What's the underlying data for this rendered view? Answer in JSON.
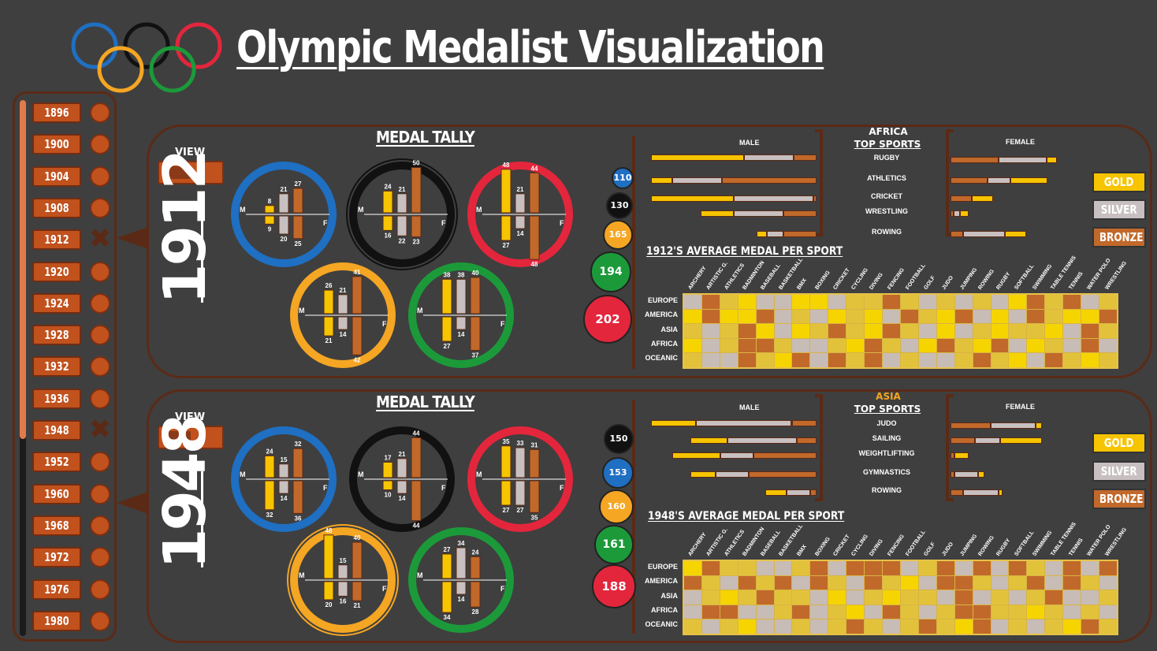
{
  "title": "Olympic Medalist Visualization",
  "colors": {
    "gold": "#f6c400",
    "silver": "#c8c0c0",
    "bronze": "#c1692b",
    "blue": "#1f6fc2",
    "black": "#111111",
    "red": "#e3263c",
    "yellow": "#f5a623",
    "green": "#1c9a3a",
    "accent": "#c1511d"
  },
  "timeline": {
    "years": [
      "1896",
      "1900",
      "1904",
      "1908",
      "1912",
      "1920",
      "1924",
      "1928",
      "1932",
      "1936",
      "1948",
      "1952",
      "1960",
      "1968",
      "1972",
      "1976",
      "1980"
    ],
    "selected": [
      "1912",
      "1948"
    ]
  },
  "legend_buttons": {
    "gold": "GOLD",
    "silver": "SILVER",
    "bronze": "BRONZE"
  },
  "panels": [
    {
      "year": "1912",
      "view_label": "VIEW",
      "tally_title": "MEDAL TALLY",
      "rings": [
        {
          "ring": "blue",
          "male_label": "M",
          "female_label": "F",
          "top": [
            "8",
            "21",
            "27"
          ],
          "bottom": [
            "9",
            "20",
            "25"
          ]
        },
        {
          "ring": "black",
          "male_label": "M",
          "female_label": "F",
          "top": [
            "24",
            "21",
            "50"
          ],
          "bottom": [
            "16",
            "22",
            "23"
          ]
        },
        {
          "ring": "red",
          "male_label": "M",
          "female_label": "F",
          "top": [
            "48",
            "21",
            "44"
          ],
          "bottom": [
            "27",
            "14",
            "48"
          ]
        },
        {
          "ring": "yellow",
          "male_label": "M",
          "female_label": "F",
          "top": [
            "26",
            "21",
            "41"
          ],
          "bottom": [
            "21",
            "14",
            "42"
          ]
        },
        {
          "ring": "green",
          "male_label": "M",
          "female_label": "F",
          "top": [
            "38",
            "38",
            "40"
          ],
          "bottom": [
            "27",
            "14",
            "37"
          ]
        }
      ],
      "totals": [
        {
          "ring": "blue",
          "value": "110"
        },
        {
          "ring": "black",
          "value": "130"
        },
        {
          "ring": "yellow",
          "value": "165"
        },
        {
          "ring": "green",
          "value": "194"
        },
        {
          "ring": "red",
          "value": "202"
        }
      ],
      "region": "AFRICA",
      "region_color": "#ffffff",
      "top_sports_title": "TOP SPORTS",
      "male_title": "MALE",
      "female_title": "FEMALE",
      "sports": [
        {
          "name": "RUGBY",
          "male": [
            0.56,
            0.3,
            0.14
          ],
          "female": [
            0.1,
            0.45,
            0.45
          ]
        },
        {
          "name": "ATHLETICS",
          "male": [
            0.13,
            0.3,
            0.57
          ],
          "female": [
            0.35,
            0.21,
            0.35
          ]
        },
        {
          "name": "CRICKET",
          "male": [
            0.5,
            0.48,
            0.02
          ],
          "female": [
            0.2,
            0.0,
            0.2
          ]
        },
        {
          "name": "WRESTLING",
          "male": [
            0.2,
            0.3,
            0.2
          ],
          "female": [
            0.08,
            0.06,
            0.03
          ]
        },
        {
          "name": "ROWING",
          "male": [
            0.06,
            0.1,
            0.2
          ],
          "female": [
            0.2,
            0.39,
            0.12
          ]
        }
      ],
      "avg_title": "1912'S AVERAGE MEDAL PER SPORT",
      "heat_rows": [
        "EUROPE",
        "AMERICA",
        "ASIA",
        "AFRICA",
        "OCEANIC"
      ],
      "heat_cols": [
        "ARCHERY",
        "ARTISTIC G.",
        "ATHLETICS",
        "BADMINTON",
        "BASEBALL",
        "BASKETBALL",
        "BMX",
        "BOXING",
        "CRICKET",
        "CYCLING",
        "DIVING",
        "FENCING",
        "FOOTBALL",
        "GOLF",
        "JUDO",
        "JUMPING",
        "ROWING",
        "RUGBY",
        "SOFTBALL",
        "SWIMMING",
        "TABLE TENNIS",
        "TENNIS",
        "WATER POLO",
        "WRESTLING"
      ],
      "heat": [
        [
          2,
          3,
          1,
          0,
          2,
          2,
          0,
          0,
          2,
          1,
          1,
          3,
          1,
          2,
          1,
          2,
          1,
          2,
          0,
          3,
          1,
          3,
          2,
          1
        ],
        [
          0,
          3,
          0,
          0,
          3,
          2,
          1,
          2,
          0,
          1,
          0,
          2,
          3,
          1,
          0,
          3,
          2,
          0,
          2,
          3,
          1,
          0,
          0,
          3
        ],
        [
          1,
          2,
          1,
          3,
          0,
          2,
          0,
          1,
          3,
          1,
          0,
          3,
          1,
          2,
          0,
          2,
          1,
          0,
          1,
          1,
          0,
          2,
          3,
          1
        ],
        [
          0,
          2,
          1,
          3,
          3,
          1,
          2,
          2,
          1,
          0,
          3,
          1,
          2,
          0,
          3,
          1,
          0,
          3,
          2,
          0,
          1,
          2,
          3,
          2
        ],
        [
          1,
          2,
          2,
          3,
          1,
          0,
          3,
          2,
          3,
          1,
          3,
          2,
          1,
          2,
          2,
          1,
          3,
          1,
          0,
          2,
          3,
          1,
          0,
          1
        ]
      ]
    },
    {
      "year": "1948",
      "view_label": "VIEW",
      "tally_title": "MEDAL TALLY",
      "rings": [
        {
          "ring": "blue",
          "male_label": "M",
          "female_label": "F",
          "top": [
            "24",
            "15",
            "32"
          ],
          "bottom": [
            "32",
            "14",
            "36"
          ]
        },
        {
          "ring": "black",
          "male_label": "M",
          "female_label": "F",
          "top": [
            "17",
            "21",
            "44"
          ],
          "bottom": [
            "10",
            "14",
            "44"
          ]
        },
        {
          "ring": "red",
          "male_label": "M",
          "female_label": "F",
          "top": [
            "35",
            "33",
            "31"
          ],
          "bottom": [
            "27",
            "27",
            "35"
          ]
        },
        {
          "ring": "yellow",
          "male_label": "M",
          "female_label": "F",
          "top": [
            "48",
            "15",
            "40"
          ],
          "bottom": [
            "20",
            "16",
            "21"
          ]
        },
        {
          "ring": "green",
          "male_label": "M",
          "female_label": "F",
          "top": [
            "27",
            "34",
            "24"
          ],
          "bottom": [
            "34",
            "14",
            "28"
          ]
        }
      ],
      "totals": [
        {
          "ring": "black",
          "value": "150"
        },
        {
          "ring": "blue",
          "value": "153"
        },
        {
          "ring": "yellow",
          "value": "160"
        },
        {
          "ring": "green",
          "value": "161"
        },
        {
          "ring": "red",
          "value": "188"
        }
      ],
      "region": "ASIA",
      "region_color": "#f5a623",
      "top_sports_title": "TOP SPORTS",
      "male_title": "MALE",
      "female_title": "FEMALE",
      "sports": [
        {
          "name": "JUDO",
          "male": [
            0.27,
            0.58,
            0.15
          ],
          "female": [
            0.06,
            0.42,
            0.38
          ]
        },
        {
          "name": "SAILING",
          "male": [
            0.22,
            0.42,
            0.12
          ],
          "female": [
            0.39,
            0.24,
            0.23
          ]
        },
        {
          "name": "WEIGHTLIFTING",
          "male": [
            0.29,
            0.2,
            0.38
          ],
          "female": [
            0.13,
            0.0,
            0.04
          ]
        },
        {
          "name": "GYMNASTICS",
          "male": [
            0.15,
            0.2,
            0.41
          ],
          "female": [
            0.06,
            0.22,
            0.04
          ]
        },
        {
          "name": "ROWING",
          "male": [
            0.13,
            0.14,
            0.04
          ],
          "female": [
            0.04,
            0.33,
            0.12
          ]
        }
      ],
      "avg_title": "1948'S AVERAGE MEDAL PER SPORT",
      "heat_rows": [
        "EUROPE",
        "AMERICA",
        "ASIA",
        "AFRICA",
        "OCEANIC"
      ],
      "heat_cols": [
        "ARCHERY",
        "ARTISTIC G.",
        "ATHLETICS",
        "BADMINTON",
        "BASEBALL",
        "BASKETBALL",
        "BMX",
        "BOXING",
        "CRICKET",
        "CYCLING",
        "DIVING",
        "FENCING",
        "FOOTBALL",
        "GOLF",
        "JUDO",
        "JUMPING",
        "ROWING",
        "RUGBY",
        "SOFTBALL",
        "SWIMMING",
        "TABLE TENNIS",
        "TENNIS",
        "WATER POLO",
        "WRESTLING"
      ],
      "heat": [
        [
          0,
          3,
          1,
          1,
          2,
          2,
          1,
          3,
          2,
          3,
          3,
          3,
          2,
          1,
          3,
          2,
          3,
          2,
          3,
          1,
          2,
          3,
          2,
          3
        ],
        [
          3,
          1,
          2,
          3,
          1,
          3,
          2,
          3,
          1,
          2,
          3,
          1,
          0,
          2,
          3,
          3,
          1,
          2,
          1,
          3,
          2,
          3,
          1,
          2
        ],
        [
          2,
          1,
          0,
          1,
          3,
          1,
          1,
          2,
          0,
          2,
          1,
          0,
          1,
          1,
          2,
          3,
          2,
          1,
          2,
          1,
          3,
          2,
          2,
          1
        ],
        [
          2,
          3,
          3,
          2,
          2,
          1,
          3,
          2,
          1,
          0,
          2,
          3,
          1,
          2,
          1,
          3,
          3,
          1,
          1,
          0,
          1,
          2,
          1,
          2
        ],
        [
          1,
          2,
          1,
          0,
          2,
          2,
          1,
          2,
          1,
          3,
          1,
          2,
          1,
          3,
          1,
          0,
          3,
          2,
          1,
          2,
          1,
          0,
          3,
          1
        ]
      ]
    }
  ]
}
